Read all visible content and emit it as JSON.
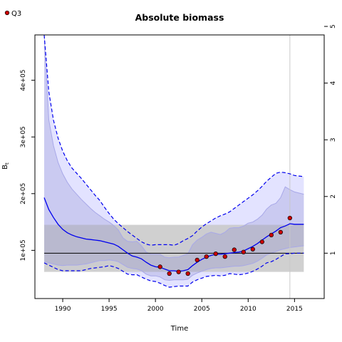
{
  "chart_data": {
    "type": "line",
    "title": "Absolute biomass",
    "xlabel": "Time",
    "ylabel": "B",
    "ylabel_subscript": "t",
    "xlim": [
      1987,
      2018.2
    ],
    "ylim": [
      15000,
      480000
    ],
    "xticks": [
      1990,
      1995,
      2000,
      2005,
      2010,
      2015
    ],
    "yticks": [
      100000,
      200000,
      300000,
      400000
    ],
    "ytick_labels": [
      "1e+05",
      "2e+05",
      "3e+05",
      "4e+05"
    ],
    "y2_ticks": [
      1,
      2,
      3,
      4,
      5
    ],
    "y2_ticks_biomass": [
      95000,
      195000,
      295000,
      395000,
      495000
    ],
    "legend": {
      "position": "top-left",
      "entries": [
        {
          "label": "Q3",
          "marker": "point",
          "color": "#cc0000"
        }
      ]
    },
    "reference": {
      "bmsy": 95000,
      "bmsy_band": [
        62000,
        145000
      ],
      "x_range": [
        1988,
        2016
      ],
      "current_year_line": 2014.5
    },
    "x": [
      1988,
      1988.5,
      1989,
      1989.5,
      1990,
      1990.5,
      1991,
      1991.5,
      1992,
      1992.5,
      1993,
      1993.5,
      1994,
      1994.5,
      1995,
      1995.5,
      1996,
      1996.5,
      1997,
      1997.5,
      1998,
      1998.5,
      1999,
      1999.5,
      2000,
      2000.5,
      2001,
      2001.5,
      2002,
      2002.5,
      2003,
      2003.5,
      2004,
      2004.5,
      2005,
      2005.5,
      2006,
      2006.5,
      2007,
      2007.5,
      2008,
      2008.5,
      2009,
      2009.5,
      2010,
      2010.5,
      2011,
      2011.5,
      2012,
      2012.5,
      2013,
      2013.5,
      2014,
      2014.5,
      2015,
      2015.5,
      2016
    ],
    "series": [
      {
        "role": "median",
        "color": "#0000ee",
        "values": [
          193000,
          172000,
          158000,
          146000,
          137000,
          131000,
          127000,
          124000,
          122000,
          120000,
          119000,
          118000,
          117000,
          115000,
          113000,
          111000,
          107000,
          101000,
          95000,
          90000,
          88000,
          85000,
          79000,
          74000,
          71000,
          70000,
          67000,
          64000,
          64000,
          63000,
          64000,
          66000,
          73000,
          79000,
          84000,
          88000,
          91000,
          93000,
          93000,
          94000,
          95000,
          96000,
          97000,
          99000,
          103000,
          107000,
          112000,
          118000,
          124000,
          129000,
          134000,
          140000,
          143000,
          147000,
          146000,
          146000,
          146000
        ]
      },
      {
        "role": "upper-ci",
        "color": "#0000ee",
        "dash": true,
        "values": [
          480000,
          380000,
          330000,
          298000,
          275000,
          258000,
          245000,
          236000,
          227000,
          217000,
          207000,
          197000,
          188000,
          176000,
          165000,
          155000,
          147000,
          140000,
          133000,
          127000,
          121000,
          115000,
          111000,
          109000,
          110000,
          110000,
          110000,
          110000,
          109000,
          112000,
          117000,
          121000,
          126000,
          134000,
          141000,
          147000,
          152000,
          157000,
          161000,
          164000,
          168000,
          174000,
          180000,
          186000,
          192000,
          198000,
          205000,
          213000,
          222000,
          229000,
          236000,
          238000,
          237000,
          235000,
          232000,
          231000,
          230000
        ]
      },
      {
        "role": "lower-ci",
        "color": "#0000ee",
        "dash": true,
        "values": [
          78000,
          74000,
          70000,
          66000,
          64000,
          64000,
          64000,
          64000,
          64000,
          66000,
          68000,
          69000,
          70000,
          71000,
          73000,
          71000,
          68000,
          63000,
          58000,
          57000,
          57000,
          53000,
          49000,
          46000,
          45000,
          42000,
          38000,
          35000,
          36000,
          37000,
          37000,
          37000,
          44000,
          48000,
          51000,
          54000,
          55000,
          56000,
          55000,
          56000,
          59000,
          58000,
          57000,
          58000,
          60000,
          63000,
          67000,
          72000,
          78000,
          80000,
          84000,
          89000,
          94000,
          94000,
          95000,
          95000,
          95000
        ]
      },
      {
        "role": "inner-upper",
        "color": "#9999dd",
        "values": [
          480000,
          330000,
          285000,
          255000,
          235000,
          220000,
          208000,
          199000,
          190000,
          182000,
          174000,
          167000,
          161000,
          155000,
          150000,
          144000,
          136000,
          122000,
          116000,
          115000,
          116000,
          108000,
          97000,
          93000,
          93000,
          93000,
          88000,
          87000,
          88000,
          88000,
          91000,
          94000,
          110000,
          118000,
          123000,
          129000,
          132000,
          130000,
          128000,
          132000,
          139000,
          140000,
          140000,
          143000,
          148000,
          150000,
          155000,
          162000,
          173000,
          180000,
          183000,
          193000,
          212000,
          207000,
          203000,
          201000,
          199000
        ]
      },
      {
        "role": "inner-lower",
        "color": "#9999dd",
        "values": [
          80000,
          78000,
          76000,
          74000,
          73000,
          74000,
          74000,
          74000,
          75000,
          76000,
          78000,
          80000,
          82000,
          82000,
          83000,
          82000,
          80000,
          75000,
          70000,
          68000,
          67000,
          64000,
          58000,
          55000,
          55000,
          53000,
          48000,
          47000,
          48000,
          48000,
          48000,
          49000,
          56000,
          60000,
          63000,
          66000,
          68000,
          69000,
          69000,
          70000,
          71000,
          72000,
          72000,
          73000,
          75000,
          77000,
          81000,
          86000,
          92000,
          95000,
          98000,
          101000,
          103000,
          105000,
          106000,
          107000,
          108000
        ]
      }
    ],
    "points": {
      "name": "Q3",
      "x": [
        2000.5,
        2001.5,
        2002.5,
        2003.5,
        2004.5,
        2005.5,
        2006.5,
        2007.5,
        2008.5,
        2009.5,
        2010.5,
        2011.5,
        2012.5,
        2013.5,
        2014.5
      ],
      "y": [
        71000,
        59000,
        62000,
        59000,
        83000,
        89000,
        94000,
        89000,
        101000,
        97000,
        102000,
        115000,
        127000,
        132000,
        157000
      ]
    }
  }
}
